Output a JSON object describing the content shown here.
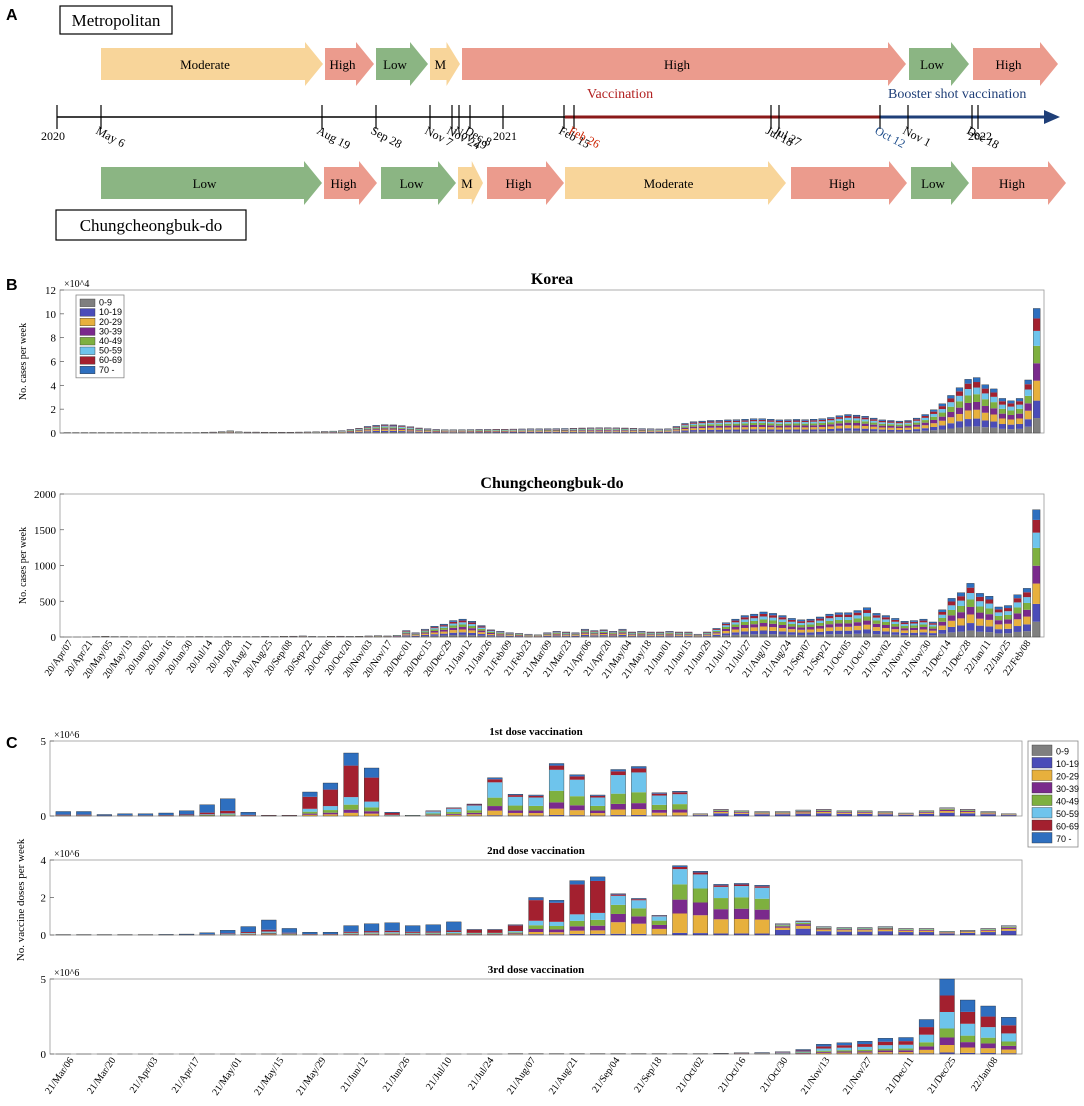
{
  "panels": {
    "a": "A",
    "b": "B",
    "c": "C"
  },
  "timeline": {
    "metro_label": "Metropolitan",
    "chung_label": "Chungcheongbuk-do",
    "vaccination_label": "Vaccination",
    "booster_label": "Booster shot vaccination",
    "colors": {
      "Low": "#8bb583",
      "Moderate": "#f8d59a",
      "M": "#f8d59a",
      "High": "#eb9b8d"
    },
    "metro_phases": [
      {
        "label": "Moderate",
        "level": "Moderate"
      },
      {
        "label": "High",
        "level": "High"
      },
      {
        "label": "Low",
        "level": "Low"
      },
      {
        "label": "M",
        "level": "M"
      },
      {
        "label": "High",
        "level": "High"
      },
      {
        "label": "Low",
        "level": "Low"
      },
      {
        "label": "High",
        "level": "High"
      }
    ],
    "chung_phases": [
      {
        "label": "Low",
        "level": "Low"
      },
      {
        "label": "High",
        "level": "High"
      },
      {
        "label": "Low",
        "level": "Low"
      },
      {
        "label": "M",
        "level": "M"
      },
      {
        "label": "High",
        "level": "High"
      },
      {
        "label": "Moderate",
        "level": "Moderate"
      },
      {
        "label": "High",
        "level": "High"
      },
      {
        "label": "Low",
        "level": "Low"
      },
      {
        "label": "High",
        "level": "High"
      }
    ],
    "dates": [
      {
        "label": "2020",
        "color": "#000000"
      },
      {
        "label": "May 6",
        "color": "#000000"
      },
      {
        "label": "Aug 19",
        "color": "#000000"
      },
      {
        "label": "Sep 28",
        "color": "#000000"
      },
      {
        "label": "Nov 7",
        "color": "#000000"
      },
      {
        "label": "Nov 24",
        "color": "#000000"
      },
      {
        "label": "Nov 29",
        "color": "#000000"
      },
      {
        "label": "Dec 8",
        "color": "#000000"
      },
      {
        "label": "2021",
        "color": "#000000"
      },
      {
        "label": "Feb 15",
        "color": "#000000"
      },
      {
        "label": "Feb 26",
        "color": "#cc2200"
      },
      {
        "label": "Jul 18",
        "color": "#000000"
      },
      {
        "label": "Jul 27",
        "color": "#000000"
      },
      {
        "label": "Oct 12",
        "color": "#1f4e8c"
      },
      {
        "label": "Nov 1",
        "color": "#000000"
      },
      {
        "label": "Dec 18",
        "color": "#000000"
      },
      {
        "label": "2022",
        "color": "#000000"
      }
    ]
  },
  "age_legend": [
    {
      "label": "0-9",
      "color": "#7f7f7f"
    },
    {
      "label": "10-19",
      "color": "#4a4cb8"
    },
    {
      "label": "20-29",
      "color": "#e7b03d"
    },
    {
      "label": "30-39",
      "color": "#7a2a8c"
    },
    {
      "label": "40-49",
      "color": "#7eb03f"
    },
    {
      "label": "50-59",
      "color": "#6ec4ec"
    },
    {
      "label": "60-69",
      "color": "#a3202f"
    },
    {
      "label": "70 -",
      "color": "#2e6fbf"
    }
  ],
  "chart_data": [
    {
      "type": "bar",
      "stacked": true,
      "title": "Korea",
      "ylabel": "No. cases per week",
      "ylim": [
        0,
        120000
      ],
      "y_multiplier": "×10^4",
      "yticks": [
        0,
        2,
        4,
        6,
        8,
        10,
        12
      ],
      "xlabels_shared_with": "Chungcheongbuk-do",
      "totals": [
        300,
        300,
        300,
        300,
        300,
        300,
        300,
        300,
        300,
        300,
        300,
        300,
        300,
        300,
        300,
        300,
        500,
        800,
        1200,
        1800,
        1000,
        800,
        800,
        700,
        600,
        700,
        700,
        800,
        900,
        1000,
        1300,
        1600,
        2000,
        3000,
        4000,
        5500,
        6500,
        7000,
        6800,
        6200,
        5200,
        4200,
        3600,
        3000,
        2800,
        2700,
        2800,
        2900,
        3000,
        3000,
        3100,
        3100,
        3300,
        3400,
        3500,
        3500,
        3600,
        3700,
        3800,
        4000,
        4200,
        4300,
        4400,
        4400,
        4300,
        4200,
        4000,
        3700,
        3500,
        3400,
        3500,
        5500,
        8000,
        9500,
        10000,
        10500,
        10600,
        11000,
        11200,
        11500,
        12000,
        12000,
        11500,
        11000,
        11200,
        11400,
        11200,
        11600,
        12000,
        13000,
        14500,
        15500,
        15000,
        14000,
        12500,
        11000,
        10500,
        10000,
        10500,
        12500,
        15500,
        19500,
        24500,
        31500,
        38000,
        45000,
        46500,
        40500,
        37000,
        29000,
        27000,
        29000,
        44500,
        104500
      ]
    },
    {
      "type": "bar",
      "stacked": true,
      "title": "Chungcheongbuk-do",
      "ylabel": "No. cases per week",
      "ylim": [
        0,
        2000
      ],
      "yticks": [
        0,
        500,
        1000,
        1500,
        2000
      ],
      "xtick_labels": [
        "20/Apr/07",
        "20/Apr/21",
        "20/May/05",
        "20/May/19",
        "20/Jun/02",
        "20/Jun/16",
        "20/Jun/30",
        "20/Jul/14",
        "20/Jul/28",
        "20/Aug/11",
        "20/Aug/25",
        "20/Sep/08",
        "20/Sep/22",
        "20/Oct/06",
        "20/Oct/20",
        "20/Nov/03",
        "20/Nov/17",
        "20/Dec/01",
        "20/Dec/15",
        "20/Dec/29",
        "21/Jan/12",
        "21/Jan/26",
        "21/Feb/09",
        "21/Feb/23",
        "21/Mar/09",
        "21/Mar/23",
        "21/Apr/06",
        "21/Apr/20",
        "21/May/04",
        "21/May/18",
        "21/Jun/01",
        "21/Jun/15",
        "21/Jun/29",
        "21/Jul/13",
        "21/Jul/27",
        "21/Aug/10",
        "21/Aug/24",
        "21/Sep/07",
        "21/Sep/21",
        "21/Oct/05",
        "21/Oct/19",
        "21/Nov/02",
        "21/Nov/16",
        "21/Nov/30",
        "21/Dec/14",
        "21/Dec/28",
        "22/Jan/11",
        "22/Jan/25",
        "22/Feb/08"
      ],
      "totals": [
        0,
        0,
        0,
        5,
        10,
        5,
        3,
        2,
        2,
        2,
        3,
        5,
        2,
        4,
        6,
        3,
        2,
        5,
        6,
        4,
        5,
        8,
        5,
        10,
        12,
        15,
        8,
        5,
        10,
        12,
        8,
        10,
        15,
        20,
        15,
        25,
        90,
        60,
        110,
        150,
        180,
        230,
        250,
        220,
        160,
        100,
        80,
        60,
        50,
        40,
        30,
        60,
        80,
        70,
        60,
        110,
        90,
        100,
        80,
        110,
        70,
        80,
        70,
        70,
        80,
        70,
        70,
        40,
        70,
        120,
        200,
        250,
        300,
        320,
        350,
        330,
        300,
        260,
        240,
        250,
        280,
        320,
        340,
        340,
        370,
        410,
        330,
        300,
        260,
        220,
        230,
        250,
        210,
        380,
        540,
        620,
        750,
        610,
        570,
        420,
        440,
        590,
        680,
        1780
      ]
    },
    {
      "type": "bar",
      "stacked": true,
      "title": "1st dose vaccination",
      "ylabel": "No. vaccine doses per week",
      "ylim": [
        0,
        5000000
      ],
      "y_multiplier": "×10^6",
      "yticks": [
        0,
        5
      ],
      "totals": [
        0.3,
        0.3,
        0.1,
        0.15,
        0.15,
        0.2,
        0.35,
        0.75,
        1.15,
        0.25,
        0.05,
        0.05,
        1.6,
        2.2,
        4.2,
        3.2,
        0.25,
        0.05,
        0.35,
        0.55,
        0.8,
        2.55,
        1.45,
        1.4,
        3.5,
        2.75,
        1.4,
        3.1,
        3.3,
        1.55,
        1.65,
        0.15,
        0.45,
        0.35,
        0.3,
        0.3,
        0.4,
        0.45,
        0.35,
        0.35,
        0.3,
        0.2,
        0.35,
        0.55,
        0.45,
        0.3,
        0.15
      ]
    },
    {
      "type": "bar",
      "stacked": true,
      "title": "2nd dose vaccination",
      "ylabel": "No. vaccine doses per week",
      "ylim": [
        0,
        4000000
      ],
      "y_multiplier": "×10^6",
      "yticks": [
        0,
        2,
        4
      ],
      "totals": [
        0.02,
        0.02,
        0.02,
        0.02,
        0.02,
        0.03,
        0.05,
        0.12,
        0.25,
        0.45,
        0.8,
        0.35,
        0.15,
        0.15,
        0.5,
        0.6,
        0.65,
        0.5,
        0.55,
        0.7,
        0.3,
        0.3,
        0.55,
        2.0,
        1.85,
        2.9,
        3.1,
        2.2,
        1.95,
        1.05,
        3.7,
        3.4,
        2.7,
        2.75,
        2.65,
        0.6,
        0.75,
        0.45,
        0.4,
        0.4,
        0.45,
        0.35,
        0.35,
        0.2,
        0.25,
        0.35,
        0.5
      ]
    },
    {
      "type": "bar",
      "stacked": true,
      "title": "3rd dose vaccination",
      "ylabel": "No. vaccine doses per week",
      "ylim": [
        0,
        5000000
      ],
      "y_multiplier": "×10^6",
      "yticks": [
        0,
        5
      ],
      "xtick_labels": [
        "21/Mar/06",
        "21/Mar/20",
        "21/Apr/03",
        "21/Apr/17",
        "21/May/01",
        "21/May/15",
        "21/May/29",
        "21/Jun/12",
        "21/Jun/26",
        "21/Jul/10",
        "21/Jul/24",
        "21/Aug/07",
        "21/Aug/21",
        "21/Sep/04",
        "21/Sep/18",
        "21/Oct/02",
        "21/Oct/16",
        "21/Oct/30",
        "21/Nov/13",
        "21/Nov/27",
        "21/Dec/11",
        "21/Dec/25",
        "22/Jan/08"
      ],
      "totals": [
        0,
        0,
        0,
        0,
        0,
        0,
        0,
        0,
        0,
        0,
        0,
        0,
        0,
        0,
        0,
        0,
        0,
        0,
        0,
        0,
        0,
        0,
        0.02,
        0.02,
        0.02,
        0.02,
        0.02,
        0.02,
        0.02,
        0.02,
        0.02,
        0.02,
        0.05,
        0.08,
        0.1,
        0.15,
        0.3,
        0.65,
        0.75,
        0.85,
        1.05,
        1.1,
        2.3,
        5.0,
        3.6,
        3.2,
        2.45
      ]
    }
  ]
}
